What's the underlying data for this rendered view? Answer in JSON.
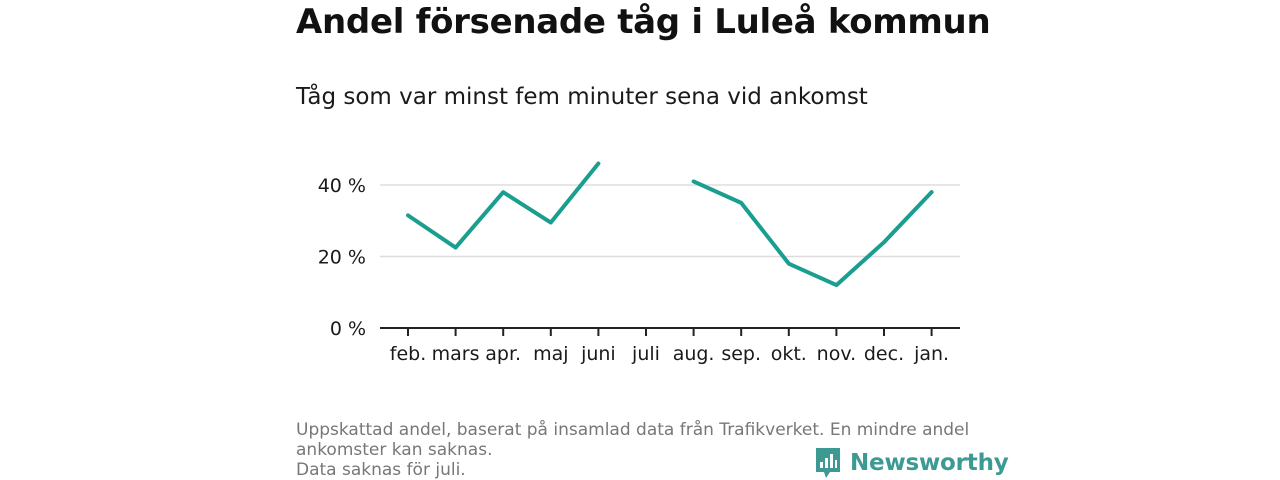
{
  "title": "Andel försenade tåg i Luleå kommun",
  "subtitle": "Tåg som var minst fem minuter sena vid ankomst",
  "footer": {
    "line1": "Uppskattad andel, baserat på insamlad data från Trafikverket. En mindre andel ankomster kan saknas.",
    "line2": "Data saknas för juli."
  },
  "brand": {
    "name": "Newsworthy",
    "color": "#3d9a93"
  },
  "colors": {
    "line": "#1a9e8f",
    "grid": "#dddddd",
    "axis": "#222222"
  },
  "chart_data": {
    "type": "line",
    "title": "Andel försenade tåg i Luleå kommun",
    "subtitle": "Tåg som var minst fem minuter sena vid ankomst",
    "xlabel": "",
    "ylabel": "",
    "categories": [
      "feb.",
      "mars",
      "apr.",
      "maj",
      "juni",
      "juli",
      "aug.",
      "sep.",
      "okt.",
      "nov.",
      "dec.",
      "jan."
    ],
    "series": [
      {
        "values": [
          31.5,
          22.5,
          38,
          29.5,
          46,
          null,
          41,
          35,
          18,
          12,
          24,
          38
        ]
      }
    ],
    "y_ticks": [
      0,
      20,
      40
    ],
    "y_tick_labels": [
      "0 %",
      "20 %",
      "40 %"
    ],
    "ylim": [
      0,
      46
    ],
    "grid": true,
    "legend": "none"
  }
}
